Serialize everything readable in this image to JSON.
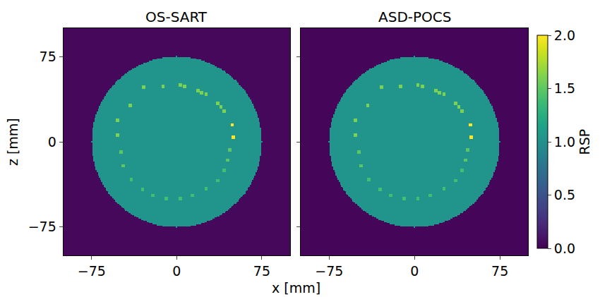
{
  "chart_data": {
    "type": "heatmap",
    "color": "viridis",
    "xlabel": "x [mm]",
    "ylabel": "z [mm]",
    "xlim": [
      -100,
      100
    ],
    "ylim": [
      -100,
      100
    ],
    "xticks": [
      {
        "value": -75,
        "label": "−75"
      },
      0,
      75
    ],
    "yticks": [
      {
        "value": -75,
        "label": "−75"
      },
      0,
      75
    ],
    "tick_labels": true,
    "colorbar": {
      "title": "RSP",
      "range": [
        0,
        2
      ],
      "ticks": [
        {
          "value": 0,
          "label": "0.0"
        },
        {
          "value": 0.5,
          "label": "0.5"
        },
        {
          "value": 1,
          "label": "1.0"
        },
        {
          "value": 1.5,
          "label": "1.5"
        },
        {
          "value": 2,
          "label": "2.0"
        }
      ]
    },
    "grid_mm": 1,
    "phantom": {
      "disk_radius_mm": 75,
      "insert_size_mm": 3,
      "inserts": [
        {
          "x": -52,
          "z": 19,
          "rsp": 1.6
        },
        {
          "x": -52,
          "z": 6,
          "rsp": 1.6
        },
        {
          "x": -41,
          "z": 32,
          "rsp": 1.6
        },
        {
          "x": -29,
          "z": 48,
          "rsp": 1.6
        },
        {
          "x": -12,
          "z": 49,
          "rsp": 1.6
        },
        {
          "x": 3,
          "z": 50,
          "rsp": 1.6
        },
        {
          "x": 7,
          "z": 49,
          "rsp": 1.6
        },
        {
          "x": 19,
          "z": 45,
          "rsp": 1.6
        },
        {
          "x": 22,
          "z": 43,
          "rsp": 1.6
        },
        {
          "x": 26,
          "z": 42,
          "rsp": 1.6
        },
        {
          "x": 36,
          "z": 34,
          "rsp": 1.6
        },
        {
          "x": 39,
          "z": 31,
          "rsp": 1.6
        },
        {
          "x": 42,
          "z": 27,
          "rsp": 1.6
        },
        {
          "x": 49,
          "z": 15,
          "rsp": 2.0
        },
        {
          "x": 50,
          "z": 4,
          "rsp": 2.0
        },
        {
          "x": 47,
          "z": -7,
          "rsp": 1.5
        },
        {
          "x": 45,
          "z": -16,
          "rsp": 1.5
        },
        {
          "x": 42,
          "z": -25,
          "rsp": 1.4
        },
        {
          "x": 36,
          "z": -34,
          "rsp": 1.4
        },
        {
          "x": 26,
          "z": -41,
          "rsp": 1.4
        },
        {
          "x": 14,
          "z": -47,
          "rsp": 1.4
        },
        {
          "x": 3,
          "z": -50,
          "rsp": 1.4
        },
        {
          "x": -9,
          "z": -50,
          "rsp": 1.4
        },
        {
          "x": -21,
          "z": -47,
          "rsp": 1.4
        },
        {
          "x": -30,
          "z": -42,
          "rsp": 1.4
        },
        {
          "x": -40,
          "z": -33,
          "rsp": 1.4
        },
        {
          "x": -47,
          "z": -21,
          "rsp": 1.5
        },
        {
          "x": -49,
          "z": -9,
          "rsp": 1.5
        }
      ]
    },
    "panels": [
      {
        "title": "OS-SART",
        "disk_rsp": 1.03,
        "background_rsp": 0.04
      },
      {
        "title": "ASD-POCS",
        "disk_rsp": 1.03,
        "background_rsp": 0.02
      }
    ]
  }
}
